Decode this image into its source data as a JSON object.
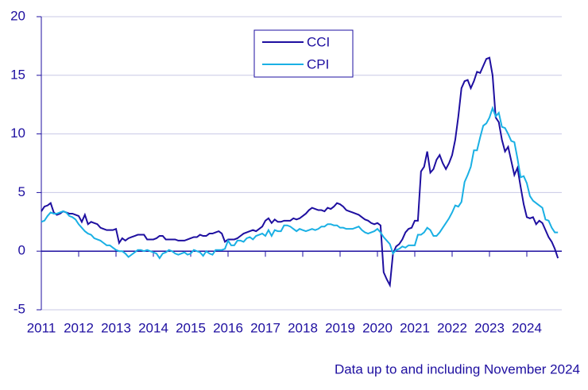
{
  "chart_data": {
    "type": "line",
    "note": "Data up to and including November 2024",
    "categories": [
      "2011",
      null,
      null,
      null,
      null,
      null,
      null,
      null,
      null,
      null,
      null,
      null,
      "2012",
      null,
      null,
      null,
      null,
      null,
      null,
      null,
      null,
      null,
      null,
      null,
      "2013",
      null,
      null,
      null,
      null,
      null,
      null,
      null,
      null,
      null,
      null,
      null,
      "2014",
      null,
      null,
      null,
      null,
      null,
      null,
      null,
      null,
      null,
      null,
      null,
      "2015",
      null,
      null,
      null,
      null,
      null,
      null,
      null,
      null,
      null,
      null,
      null,
      "2016",
      null,
      null,
      null,
      null,
      null,
      null,
      null,
      null,
      null,
      null,
      null,
      "2017",
      null,
      null,
      null,
      null,
      null,
      null,
      null,
      null,
      null,
      null,
      null,
      "2018",
      null,
      null,
      null,
      null,
      null,
      null,
      null,
      null,
      null,
      null,
      null,
      "2019",
      null,
      null,
      null,
      null,
      null,
      null,
      null,
      null,
      null,
      null,
      null,
      "2020",
      null,
      null,
      null,
      null,
      null,
      null,
      null,
      null,
      null,
      null,
      null,
      "2021",
      null,
      null,
      null,
      null,
      null,
      null,
      null,
      null,
      null,
      null,
      null,
      "2022",
      null,
      null,
      null,
      null,
      null,
      null,
      null,
      null,
      null,
      null,
      null,
      "2023",
      null,
      null,
      null,
      null,
      null,
      null,
      null,
      null,
      null,
      null,
      null,
      "2024",
      null,
      null,
      null,
      null,
      null,
      null,
      null,
      null,
      null,
      null
    ],
    "series": [
      {
        "name": "CCI",
        "color": "#1e0fa0",
        "values": [
          3.4,
          3.8,
          3.9,
          4.1,
          3.3,
          3.1,
          3.2,
          3.4,
          3.3,
          3.2,
          3.2,
          3.1,
          3.0,
          2.5,
          3.1,
          2.3,
          2.5,
          2.4,
          2.3,
          2.0,
          1.9,
          1.8,
          1.8,
          1.8,
          1.9,
          0.7,
          1.1,
          0.9,
          1.1,
          1.2,
          1.3,
          1.4,
          1.4,
          1.4,
          1.0,
          1.0,
          1.0,
          1.1,
          1.3,
          1.3,
          1.0,
          1.0,
          1.0,
          1.0,
          0.9,
          0.9,
          0.9,
          1.0,
          1.1,
          1.2,
          1.2,
          1.4,
          1.3,
          1.3,
          1.5,
          1.5,
          1.6,
          1.7,
          1.5,
          0.8,
          1.0,
          1.0,
          1.0,
          1.1,
          1.3,
          1.5,
          1.6,
          1.7,
          1.8,
          1.7,
          1.9,
          2.1,
          2.6,
          2.8,
          2.4,
          2.7,
          2.5,
          2.5,
          2.6,
          2.6,
          2.6,
          2.8,
          2.7,
          2.8,
          3.0,
          3.2,
          3.5,
          3.7,
          3.6,
          3.5,
          3.5,
          3.4,
          3.7,
          3.6,
          3.8,
          4.1,
          4.0,
          3.8,
          3.5,
          3.4,
          3.3,
          3.2,
          3.1,
          2.9,
          2.7,
          2.6,
          2.4,
          2.3,
          2.4,
          2.2,
          -1.8,
          -2.4,
          -2.9,
          -0.2,
          0.4,
          0.6,
          1.0,
          1.6,
          1.9,
          2.0,
          2.6,
          2.6,
          6.8,
          7.2,
          8.5,
          6.7,
          7.0,
          7.8,
          8.2,
          7.5,
          7.0,
          7.5,
          8.2,
          9.5,
          11.5,
          13.9,
          14.5,
          14.6,
          13.9,
          14.5,
          15.3,
          15.2,
          15.8,
          16.4,
          16.5,
          15.0,
          11.4,
          11.0,
          9.5,
          8.5,
          8.9,
          7.7,
          6.5,
          7.1,
          5.5,
          4.0,
          2.9,
          2.8,
          2.9,
          2.3,
          2.6,
          2.4,
          1.8,
          1.2,
          0.8,
          0.2,
          -0.6
        ]
      },
      {
        "name": "CPI",
        "color": "#1ab0e4",
        "values": [
          2.5,
          2.6,
          3.0,
          3.3,
          3.2,
          3.2,
          3.3,
          3.4,
          3.3,
          3.0,
          2.9,
          2.7,
          2.3,
          2.0,
          1.7,
          1.5,
          1.4,
          1.1,
          1.0,
          0.9,
          0.7,
          0.5,
          0.5,
          0.3,
          0.1,
          0.0,
          0.0,
          -0.2,
          -0.5,
          -0.3,
          -0.1,
          0.1,
          0.1,
          0.0,
          0.1,
          0.0,
          -0.1,
          -0.2,
          -0.6,
          -0.2,
          -0.1,
          0.1,
          0.0,
          -0.2,
          -0.3,
          -0.2,
          -0.1,
          -0.3,
          -0.2,
          0.1,
          0.0,
          -0.1,
          -0.4,
          0.0,
          -0.2,
          -0.3,
          0.1,
          0.1,
          0.1,
          0.2,
          0.9,
          0.5,
          0.5,
          0.9,
          0.9,
          0.8,
          1.1,
          1.2,
          1.0,
          1.3,
          1.4,
          1.5,
          1.3,
          1.8,
          1.3,
          1.8,
          1.7,
          1.7,
          2.2,
          2.2,
          2.1,
          1.9,
          1.7,
          1.9,
          1.8,
          1.7,
          1.8,
          1.9,
          1.8,
          1.9,
          2.1,
          2.1,
          2.3,
          2.3,
          2.2,
          2.2,
          2.0,
          2.0,
          1.9,
          1.9,
          1.9,
          2.0,
          2.1,
          1.8,
          1.6,
          1.5,
          1.6,
          1.7,
          1.9,
          1.6,
          1.2,
          0.9,
          0.6,
          -0.2,
          0.1,
          0.2,
          0.4,
          0.3,
          0.5,
          0.5,
          0.5,
          1.4,
          1.4,
          1.6,
          2.0,
          1.8,
          1.3,
          1.3,
          1.6,
          2.0,
          2.4,
          2.8,
          3.3,
          3.9,
          3.8,
          4.2,
          5.9,
          6.5,
          7.2,
          8.6,
          8.6,
          9.7,
          10.7,
          10.9,
          11.4,
          12.2,
          11.5,
          11.8,
          10.6,
          10.5,
          10.0,
          9.4,
          9.3,
          7.9,
          6.3,
          6.4,
          5.8,
          4.7,
          4.3,
          4.1,
          3.9,
          3.7,
          2.7,
          2.6,
          2.0,
          1.6,
          1.6
        ]
      }
    ],
    "ylim": [
      -5,
      20
    ],
    "yticks": [
      -5,
      0,
      5,
      10,
      15,
      20
    ],
    "grid": true,
    "legend": "top-center"
  }
}
